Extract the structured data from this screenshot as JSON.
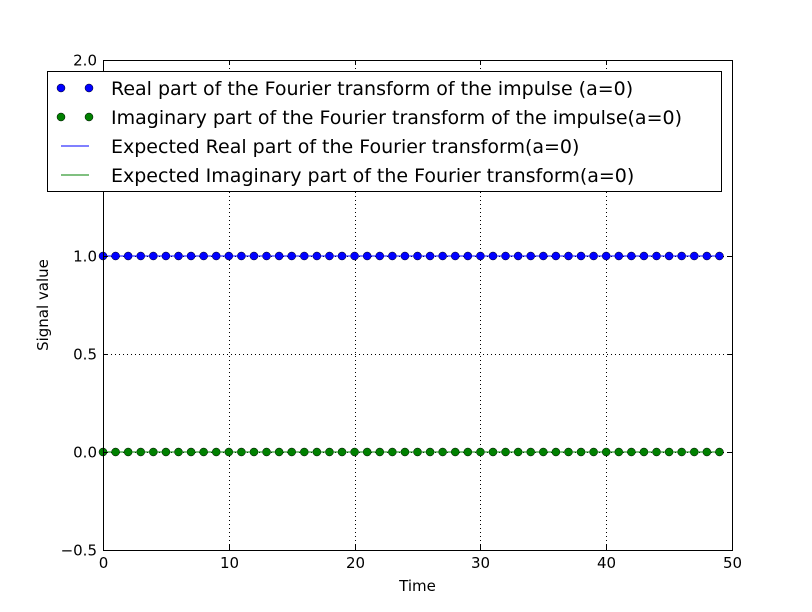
{
  "chart_data": {
    "type": "scatter",
    "title": "",
    "xlabel": "Time",
    "ylabel": "Signal value",
    "xlim": [
      0,
      50
    ],
    "ylim": [
      -0.5,
      2.0
    ],
    "x_ticks": [
      0,
      10,
      20,
      30,
      40,
      50
    ],
    "x_tick_labels": [
      "0",
      "10",
      "20",
      "30",
      "40",
      "50"
    ],
    "y_ticks": [
      -0.5,
      0.0,
      0.5,
      1.0,
      2.0
    ],
    "y_tick_labels": [
      "−0.5",
      "0.0",
      "0.5",
      "1.0",
      "2.0"
    ],
    "grid": true,
    "legend_position": "top",
    "x": [
      0,
      1,
      2,
      3,
      4,
      5,
      6,
      7,
      8,
      9,
      10,
      11,
      12,
      13,
      14,
      15,
      16,
      17,
      18,
      19,
      20,
      21,
      22,
      23,
      24,
      25,
      26,
      27,
      28,
      29,
      30,
      31,
      32,
      33,
      34,
      35,
      36,
      37,
      38,
      39,
      40,
      41,
      42,
      43,
      44,
      45,
      46,
      47,
      48,
      49
    ],
    "series": [
      {
        "name": "Real part of the Fourier transform of the impulse (a=0)",
        "style": "markers",
        "color": "#0000ff",
        "values": [
          1,
          1,
          1,
          1,
          1,
          1,
          1,
          1,
          1,
          1,
          1,
          1,
          1,
          1,
          1,
          1,
          1,
          1,
          1,
          1,
          1,
          1,
          1,
          1,
          1,
          1,
          1,
          1,
          1,
          1,
          1,
          1,
          1,
          1,
          1,
          1,
          1,
          1,
          1,
          1,
          1,
          1,
          1,
          1,
          1,
          1,
          1,
          1,
          1,
          1
        ]
      },
      {
        "name": "Imaginary part of the Fourier transform of the impulse(a=0)",
        "style": "markers",
        "color": "#008000",
        "values": [
          0,
          0,
          0,
          0,
          0,
          0,
          0,
          0,
          0,
          0,
          0,
          0,
          0,
          0,
          0,
          0,
          0,
          0,
          0,
          0,
          0,
          0,
          0,
          0,
          0,
          0,
          0,
          0,
          0,
          0,
          0,
          0,
          0,
          0,
          0,
          0,
          0,
          0,
          0,
          0,
          0,
          0,
          0,
          0,
          0,
          0,
          0,
          0,
          0,
          0
        ]
      },
      {
        "name": "Expected Real part of the Fourier transform(a=0)",
        "style": "line",
        "color": "#0000ff",
        "values": [
          1,
          1,
          1,
          1,
          1,
          1,
          1,
          1,
          1,
          1,
          1,
          1,
          1,
          1,
          1,
          1,
          1,
          1,
          1,
          1,
          1,
          1,
          1,
          1,
          1,
          1,
          1,
          1,
          1,
          1,
          1,
          1,
          1,
          1,
          1,
          1,
          1,
          1,
          1,
          1,
          1,
          1,
          1,
          1,
          1,
          1,
          1,
          1,
          1,
          1
        ]
      },
      {
        "name": "Expected Imaginary part of the Fourier transform(a=0)",
        "style": "line",
        "color": "#008000",
        "values": [
          0,
          0,
          0,
          0,
          0,
          0,
          0,
          0,
          0,
          0,
          0,
          0,
          0,
          0,
          0,
          0,
          0,
          0,
          0,
          0,
          0,
          0,
          0,
          0,
          0,
          0,
          0,
          0,
          0,
          0,
          0,
          0,
          0,
          0,
          0,
          0,
          0,
          0,
          0,
          0,
          0,
          0,
          0,
          0,
          0,
          0,
          0,
          0,
          0,
          0
        ]
      }
    ]
  }
}
